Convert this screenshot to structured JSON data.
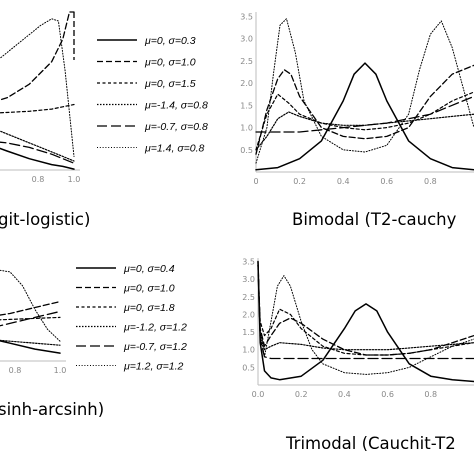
{
  "chart_data": [
    {
      "type": "line",
      "caption": "git-logistic)",
      "x_ticks": [
        "0.8",
        "1.0"
      ],
      "xlim": [
        0.4,
        1.0
      ],
      "ylim": [
        0,
        3.5
      ],
      "legend": [
        {
          "label": "μ=0, σ=0.3",
          "dash": "solid"
        },
        {
          "label": "μ=0, σ=1.0",
          "dash": "dashed"
        },
        {
          "label": "μ=0, σ=1.5",
          "dash": "short-dashed"
        },
        {
          "label": "μ=-1.4, σ=0.8",
          "dash": "dotted-dense"
        },
        {
          "label": "μ=-0.7, σ=0.8",
          "dash": "long-dashed"
        },
        {
          "label": "μ=1.4, σ=0.8",
          "dash": "dotted"
        }
      ],
      "series": [
        {
          "x": [
            0.4,
            0.5,
            0.6,
            0.7,
            0.8,
            0.9,
            0.95,
            1.0
          ],
          "y": [
            1.0,
            0.8,
            0.6,
            0.42,
            0.25,
            0.12,
            0.08,
            0.02
          ]
        },
        {
          "x": [
            0.4,
            0.5,
            0.6,
            0.7,
            0.8,
            0.9,
            0.95,
            0.98,
            1.0
          ],
          "y": [
            1.3,
            1.35,
            1.45,
            1.6,
            1.9,
            2.4,
            2.9,
            3.5,
            3.5
          ]
        },
        {
          "x": [
            0.4,
            0.6,
            0.8,
            0.9,
            0.95,
            1.0
          ],
          "y": [
            1.25,
            1.25,
            1.3,
            1.35,
            1.4,
            1.45
          ]
        },
        {
          "x": [
            0.4,
            0.5,
            0.6,
            0.7,
            0.8,
            0.9,
            1.0
          ],
          "y": [
            1.2,
            1.1,
            1.0,
            0.8,
            0.6,
            0.4,
            0.2
          ]
        },
        {
          "x": [
            0.4,
            0.5,
            0.6,
            0.7,
            0.8,
            0.9,
            1.0
          ],
          "y": [
            0.7,
            0.68,
            0.65,
            0.6,
            0.5,
            0.35,
            0.15
          ]
        },
        {
          "x": [
            0.4,
            0.5,
            0.6,
            0.7,
            0.8,
            0.85,
            0.9,
            0.93,
            0.96,
            1.0
          ],
          "y": [
            1.5,
            1.8,
            2.2,
            2.6,
            3.0,
            3.2,
            3.35,
            3.3,
            2.2,
            0.3
          ]
        }
      ]
    },
    {
      "type": "line",
      "caption": "Bimodal (T2-cauchy",
      "x_ticks": [
        "0",
        "0.2",
        "0.4",
        "0.6",
        "0.8"
      ],
      "y_ticks": [
        "0.5",
        "1.0",
        "1.5",
        "2.0",
        "2.5",
        "3.0",
        "3.5"
      ],
      "xlim": [
        0,
        1
      ],
      "ylim": [
        0,
        3.6
      ],
      "series": [
        {
          "x": [
            0,
            0.1,
            0.2,
            0.3,
            0.4,
            0.45,
            0.5,
            0.55,
            0.6,
            0.7,
            0.8,
            0.9,
            1.0
          ],
          "y": [
            0.05,
            0.1,
            0.3,
            0.7,
            1.6,
            2.2,
            2.45,
            2.2,
            1.6,
            0.7,
            0.3,
            0.1,
            0.05
          ]
        },
        {
          "x": [
            0,
            0.05,
            0.1,
            0.13,
            0.16,
            0.2,
            0.3,
            0.4,
            0.5,
            0.6,
            0.7,
            0.8,
            0.9,
            1.0
          ],
          "y": [
            0.4,
            1.4,
            2.1,
            2.3,
            2.2,
            1.7,
            1.0,
            0.8,
            0.75,
            0.8,
            1.0,
            1.7,
            2.2,
            2.4
          ]
        },
        {
          "x": [
            0,
            0.05,
            0.1,
            0.15,
            0.2,
            0.3,
            0.4,
            0.5,
            0.6,
            0.7,
            0.8,
            0.9,
            1.0
          ],
          "y": [
            0.5,
            1.3,
            1.75,
            1.55,
            1.3,
            1.1,
            1.0,
            0.95,
            1.0,
            1.1,
            1.3,
            1.6,
            1.8
          ]
        },
        {
          "x": [
            0,
            0.05,
            0.1,
            0.15,
            0.2,
            0.3,
            0.4,
            0.5,
            0.6,
            0.7,
            0.8,
            0.9,
            1.0
          ],
          "y": [
            0.5,
            0.8,
            1.2,
            1.35,
            1.25,
            1.1,
            1.05,
            1.05,
            1.1,
            1.15,
            1.2,
            1.25,
            1.3
          ]
        },
        {
          "x": [
            0,
            0.1,
            0.2,
            0.3,
            0.4,
            0.5,
            0.6,
            0.7,
            0.8,
            0.9,
            1.0
          ],
          "y": [
            0.9,
            0.9,
            0.9,
            0.95,
            1.0,
            1.05,
            1.1,
            1.2,
            1.3,
            1.5,
            1.7
          ]
        },
        {
          "x": [
            0,
            0.05,
            0.08,
            0.11,
            0.14,
            0.18,
            0.22,
            0.3,
            0.4,
            0.5,
            0.6,
            0.7,
            0.75,
            0.8,
            0.85,
            0.9,
            1.0
          ],
          "y": [
            0.2,
            1.0,
            2.2,
            3.3,
            3.45,
            2.7,
            1.6,
            0.8,
            0.5,
            0.45,
            0.6,
            1.3,
            2.3,
            3.1,
            3.4,
            2.8,
            1.0
          ]
        }
      ]
    },
    {
      "type": "line",
      "caption": "sinh-arcsinh)",
      "x_ticks": [
        "0.8",
        "1.0"
      ],
      "xlim": [
        0.4,
        1.0
      ],
      "ylim": [
        0,
        2.6
      ],
      "legend": [
        {
          "label": "μ=0, σ=0.4",
          "dash": "solid"
        },
        {
          "label": "μ=0, σ=1.0",
          "dash": "dashed"
        },
        {
          "label": "μ=0, σ=1.8",
          "dash": "short-dashed"
        },
        {
          "label": "μ=-1.2, σ=1.2",
          "dash": "dotted-dense"
        },
        {
          "label": "μ=-0.7, σ=1.2",
          "dash": "long-dashed"
        },
        {
          "label": "μ=1.2, σ=1.2",
          "dash": "dotted"
        }
      ],
      "series": [
        {
          "x": [
            0.4,
            0.5,
            0.6,
            0.7,
            0.8,
            0.9,
            1.0
          ],
          "y": [
            1.1,
            0.95,
            0.8,
            0.6,
            0.45,
            0.3,
            0.2
          ]
        },
        {
          "x": [
            0.4,
            0.5,
            0.6,
            0.7,
            0.8,
            0.9,
            1.0
          ],
          "y": [
            0.9,
            0.95,
            1.0,
            1.1,
            1.2,
            1.35,
            1.5
          ]
        },
        {
          "x": [
            0.4,
            0.6,
            0.8,
            1.0
          ],
          "y": [
            0.95,
            1.0,
            1.05,
            1.1
          ]
        },
        {
          "x": [
            0.4,
            0.6,
            0.8,
            1.0
          ],
          "y": [
            0.7,
            0.6,
            0.5,
            0.4
          ]
        },
        {
          "x": [
            0.4,
            0.5,
            0.6,
            0.7,
            0.8,
            0.9,
            1.0
          ],
          "y": [
            0.5,
            0.6,
            0.7,
            0.8,
            0.95,
            1.1,
            1.25
          ]
        },
        {
          "x": [
            0.4,
            0.5,
            0.6,
            0.7,
            0.75,
            0.8,
            0.85,
            0.9,
            0.95,
            1.0
          ],
          "y": [
            1.8,
            1.9,
            2.05,
            2.2,
            2.3,
            2.25,
            1.9,
            1.3,
            0.8,
            0.5
          ]
        }
      ]
    },
    {
      "type": "line",
      "caption": "Trimodal (Cauchit-T2",
      "x_ticks": [
        "0.0",
        "0.2",
        "0.4",
        "0.6",
        "0.8"
      ],
      "y_ticks": [
        "0.5",
        "1.0",
        "1.5",
        "2.0",
        "2.5",
        "3.0",
        "3.5"
      ],
      "xlim": [
        0,
        1
      ],
      "ylim": [
        0,
        3.6
      ],
      "series": [
        {
          "x": [
            0,
            0.01,
            0.03,
            0.06,
            0.1,
            0.2,
            0.3,
            0.4,
            0.45,
            0.5,
            0.55,
            0.6,
            0.7,
            0.8,
            0.9,
            1.0
          ],
          "y": [
            3.5,
            1.2,
            0.4,
            0.2,
            0.15,
            0.25,
            0.7,
            1.6,
            2.1,
            2.3,
            2.1,
            1.5,
            0.6,
            0.25,
            0.15,
            0.1
          ]
        },
        {
          "x": [
            0,
            0.01,
            0.03,
            0.06,
            0.1,
            0.15,
            0.2,
            0.3,
            0.4,
            0.5,
            0.6,
            0.7,
            0.8,
            0.9,
            1.0
          ],
          "y": [
            3.5,
            1.6,
            1.1,
            1.4,
            1.75,
            1.9,
            1.75,
            1.3,
            1.0,
            0.85,
            0.85,
            0.9,
            1.0,
            1.2,
            1.4
          ]
        },
        {
          "x": [
            0,
            0.01,
            0.03,
            0.06,
            0.1,
            0.15,
            0.2,
            0.3,
            0.4,
            0.5,
            0.6,
            0.7,
            0.8,
            0.9,
            1.0
          ],
          "y": [
            3.3,
            1.8,
            1.4,
            1.6,
            2.15,
            2.0,
            1.6,
            1.1,
            0.9,
            0.85,
            0.85,
            0.9,
            1.0,
            1.1,
            1.2
          ]
        },
        {
          "x": [
            0,
            0.01,
            0.03,
            0.06,
            0.1,
            0.2,
            0.3,
            0.4,
            0.5,
            0.6,
            0.7,
            0.8,
            0.9,
            1.0
          ],
          "y": [
            3.4,
            1.5,
            1.0,
            1.1,
            1.2,
            1.15,
            1.05,
            1.0,
            1.0,
            1.0,
            1.05,
            1.1,
            1.15,
            1.2
          ]
        },
        {
          "x": [
            0,
            0.01,
            0.03,
            0.06,
            0.1,
            0.2,
            0.3,
            0.4,
            0.5,
            0.6,
            0.7,
            0.8,
            0.9,
            1.0
          ],
          "y": [
            3.4,
            1.3,
            0.8,
            0.75,
            0.75,
            0.75,
            0.75,
            0.75,
            0.75,
            0.75,
            0.75,
            0.75,
            0.75,
            0.75
          ]
        },
        {
          "x": [
            0,
            0.01,
            0.03,
            0.06,
            0.09,
            0.12,
            0.15,
            0.2,
            0.25,
            0.3,
            0.4,
            0.5,
            0.6,
            0.7,
            0.8,
            0.9,
            1.0
          ],
          "y": [
            3.5,
            1.5,
            0.8,
            1.8,
            2.8,
            3.1,
            2.8,
            1.8,
            1.0,
            0.6,
            0.35,
            0.3,
            0.35,
            0.5,
            0.8,
            1.1,
            1.3
          ]
        }
      ]
    }
  ]
}
